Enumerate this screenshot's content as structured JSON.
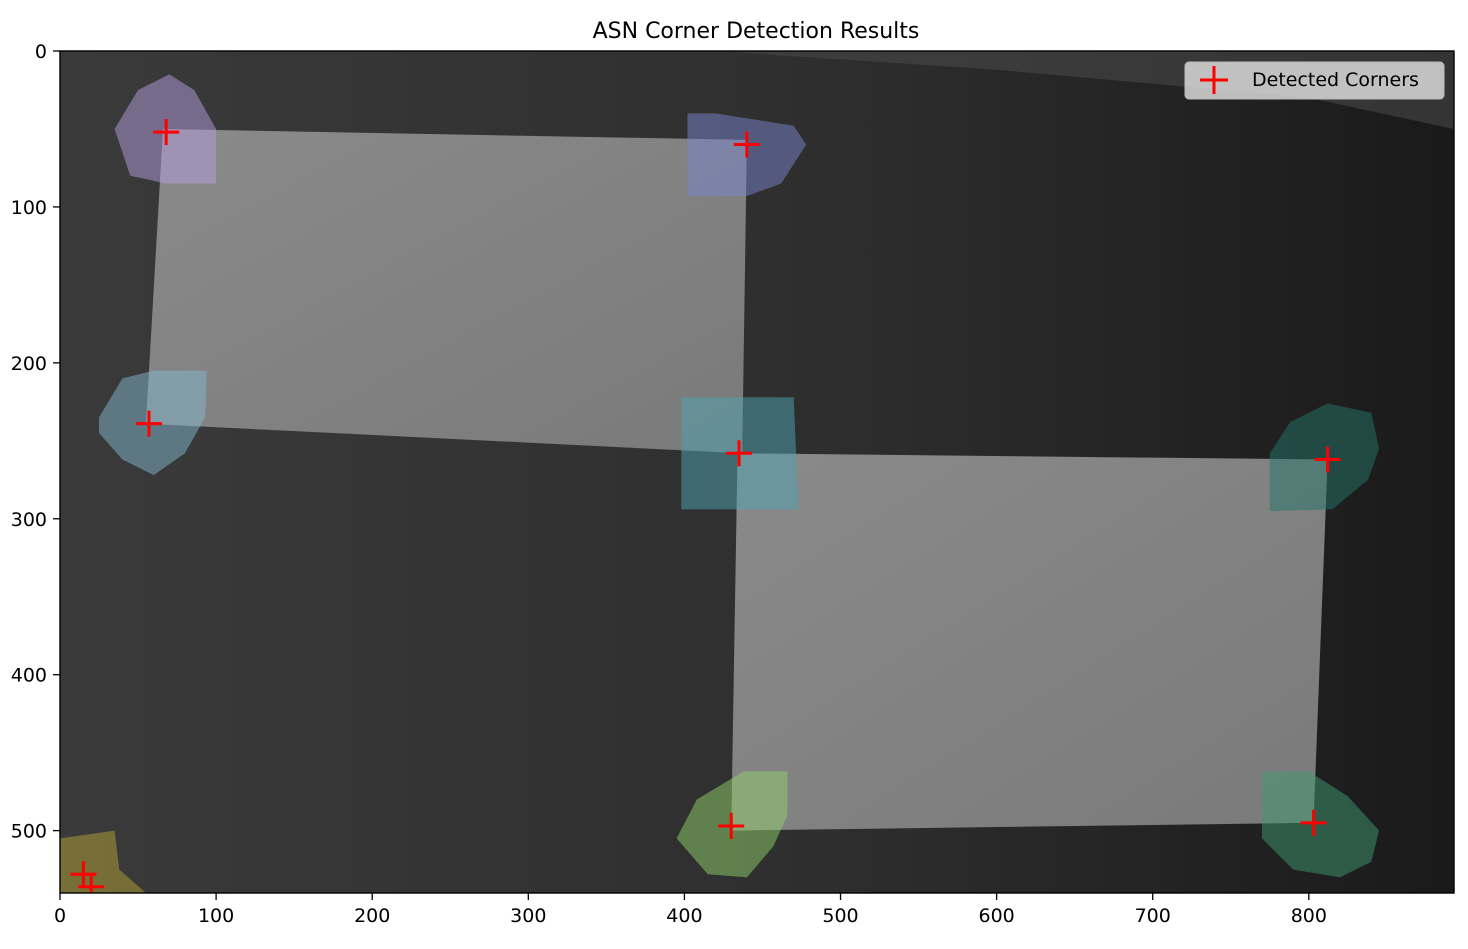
{
  "chart_data": {
    "type": "scatter",
    "title": "ASN Corner Detection Results",
    "xlabel": "",
    "ylabel": "",
    "xlim": [
      0,
      893
    ],
    "ylim": [
      540,
      0
    ],
    "x_ticks": [
      0,
      100,
      200,
      300,
      400,
      500,
      600,
      700,
      800
    ],
    "y_ticks": [
      0,
      100,
      200,
      300,
      400,
      500
    ],
    "legend": {
      "position": "top-right",
      "entries": [
        "Detected Corners"
      ]
    },
    "grid": false,
    "background": "grayscale image with two bright rectangles and colored corner-region overlays",
    "series": [
      {
        "name": "Detected Corners",
        "marker": "+",
        "color": "#ff0000",
        "points": [
          {
            "x": 68,
            "y": 52
          },
          {
            "x": 440,
            "y": 60
          },
          {
            "x": 57,
            "y": 239
          },
          {
            "x": 435,
            "y": 258
          },
          {
            "x": 812,
            "y": 262
          },
          {
            "x": 430,
            "y": 497
          },
          {
            "x": 803,
            "y": 495
          },
          {
            "x": 15,
            "y": 528
          },
          {
            "x": 20,
            "y": 536
          }
        ]
      }
    ],
    "regions": [
      {
        "color": "#b39ddb",
        "polygon": [
          [
            35,
            50
          ],
          [
            50,
            25
          ],
          [
            70,
            15
          ],
          [
            86,
            25
          ],
          [
            100,
            50
          ],
          [
            100,
            85
          ],
          [
            68,
            85
          ],
          [
            45,
            80
          ]
        ]
      },
      {
        "color": "#7986cb",
        "polygon": [
          [
            402,
            40
          ],
          [
            420,
            40
          ],
          [
            470,
            48
          ],
          [
            478,
            60
          ],
          [
            462,
            85
          ],
          [
            440,
            93
          ],
          [
            402,
            93
          ]
        ]
      },
      {
        "color": "#81b8cc",
        "polygon": [
          [
            25,
            235
          ],
          [
            40,
            210
          ],
          [
            60,
            205
          ],
          [
            94,
            205
          ],
          [
            93,
            235
          ],
          [
            80,
            258
          ],
          [
            60,
            272
          ],
          [
            40,
            262
          ],
          [
            25,
            245
          ]
        ]
      },
      {
        "color": "#4fa3b2",
        "polygon": [
          [
            398,
            222
          ],
          [
            470,
            222
          ],
          [
            473,
            294
          ],
          [
            398,
            294
          ]
        ]
      },
      {
        "color": "#26766c",
        "polygon": [
          [
            775,
            258
          ],
          [
            788,
            238
          ],
          [
            812,
            226
          ],
          [
            840,
            232
          ],
          [
            845,
            255
          ],
          [
            838,
            275
          ],
          [
            815,
            294
          ],
          [
            775,
            295
          ]
        ]
      },
      {
        "color": "#8fcf6a",
        "polygon": [
          [
            395,
            505
          ],
          [
            408,
            480
          ],
          [
            438,
            462
          ],
          [
            466,
            462
          ],
          [
            466,
            490
          ],
          [
            457,
            510
          ],
          [
            440,
            530
          ],
          [
            415,
            528
          ]
        ]
      },
      {
        "color": "#3e9a6e",
        "polygon": [
          [
            770,
            462
          ],
          [
            800,
            462
          ],
          [
            825,
            478
          ],
          [
            845,
            500
          ],
          [
            840,
            520
          ],
          [
            820,
            530
          ],
          [
            790,
            525
          ],
          [
            770,
            505
          ]
        ]
      },
      {
        "color": "#b5a135",
        "polygon": [
          [
            0,
            505
          ],
          [
            35,
            500
          ],
          [
            38,
            525
          ],
          [
            55,
            540
          ],
          [
            0,
            540
          ]
        ]
      }
    ]
  }
}
